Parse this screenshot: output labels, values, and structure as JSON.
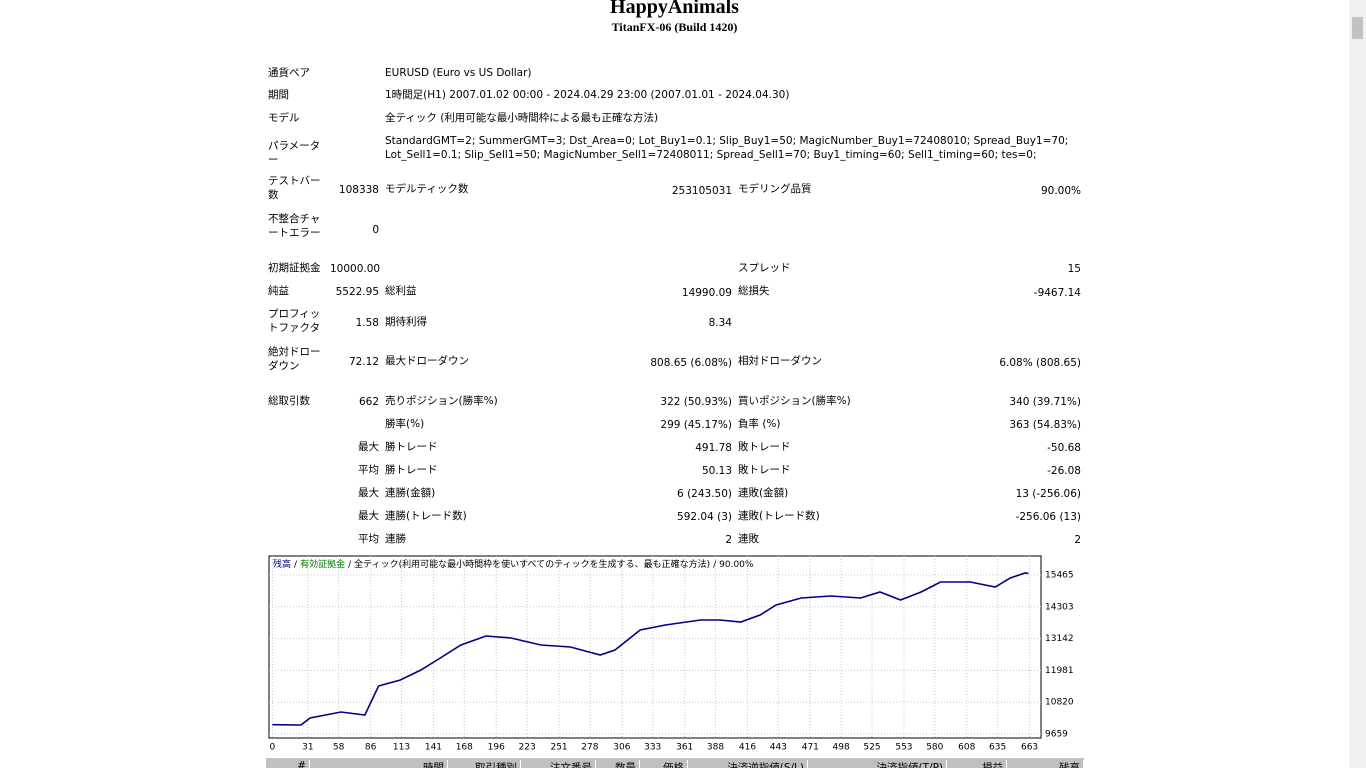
{
  "header": {
    "title": "HappyAnimals",
    "subtitle": "TitanFX-06 (Build 1420)"
  },
  "report": {
    "symbol": {
      "label": "通貨ペア",
      "value": "EURUSD (Euro vs US Dollar)"
    },
    "period": {
      "label": "期間",
      "value": "1時間足(H1) 2007.01.02 00:00 - 2024.04.29 23:00 (2007.01.01 - 2024.04.30)"
    },
    "model": {
      "label": "モデル",
      "value": "全ティック (利用可能な最小時間枠による最も正確な方法)"
    },
    "parameters": {
      "label": "パラメーター",
      "value": "StandardGMT=2; SummerGMT=3; Dst_Area=0; Lot_Buy1=0.1; Slip_Buy1=50; MagicNumber_Buy1=72408010; Spread_Buy1=70; Lot_Sell1=0.1; Slip_Sell1=50; MagicNumber_Sell1=72408011; Spread_Sell1=70; Buy1_timing=60; Sell1_timing=60; tes=0;"
    },
    "bars": {
      "label": "テストバー数",
      "value": "108338"
    },
    "ticks": {
      "label": "モデルティック数",
      "value": "253105031"
    },
    "quality": {
      "label": "モデリング品質",
      "value": "90.00%"
    },
    "mismatch": {
      "label": "不整合チャートエラー",
      "value": "0"
    },
    "deposit": {
      "label": "初期証拠金",
      "value": "10000.00"
    },
    "spread": {
      "label": "スプレッド",
      "value": "15"
    },
    "net_profit": {
      "label": "純益",
      "value": "5522.95"
    },
    "gross_profit": {
      "label": "総利益",
      "value": "14990.09"
    },
    "gross_loss": {
      "label": "総損失",
      "value": "-9467.14"
    },
    "profit_factor": {
      "label": "プロフィットファクタ",
      "value": "1.58"
    },
    "expected_payoff": {
      "label": "期待利得",
      "value": "8.34"
    },
    "abs_dd": {
      "label": "絶対ドローダウン",
      "value": "72.12"
    },
    "max_dd": {
      "label": "最大ドローダウン",
      "value": "808.65 (6.08%)"
    },
    "rel_dd": {
      "label": "相対ドローダウン",
      "value": "6.08% (808.65)"
    },
    "total_trades": {
      "label": "総取引数",
      "value": "662"
    },
    "short": {
      "label": "売りポジション(勝率%)",
      "value": "322 (50.93%)"
    },
    "long": {
      "label": "買いポジション(勝率%)",
      "value": "340 (39.71%)"
    },
    "profit_trades": {
      "label": "勝率(%)",
      "value": "299 (45.17%)"
    },
    "loss_trades": {
      "label": "負率 (%)",
      "value": "363 (54.83%)"
    },
    "largest": {
      "label": "最大",
      "profit_label": "勝トレード",
      "profit": "491.78",
      "loss_label": "敗トレード",
      "loss": "-50.68"
    },
    "average": {
      "label": "平均",
      "profit_label": "勝トレード",
      "profit": "50.13",
      "loss_label": "敗トレード",
      "loss": "-26.08"
    },
    "max_consec_wins": {
      "label": "最大",
      "profit_label": "連勝(金額)",
      "profit": "6 (243.50)",
      "loss_label": "連敗(金額)",
      "loss": "13 (-256.06)"
    },
    "max_consec_profit": {
      "label": "最大",
      "profit_label": "連勝(トレード数)",
      "profit": "592.04 (3)",
      "loss_label": "連敗(トレード数)",
      "loss": "-256.06 (13)"
    },
    "avg_consec": {
      "label": "平均",
      "profit_label": "連勝",
      "profit": "2",
      "loss_label": "連敗",
      "loss": "2"
    }
  },
  "chart_data": {
    "type": "line",
    "legend": {
      "balance": "残高",
      "equity": "有効証拠金",
      "model": "全ティック(利用可能な最小時間枠を使いすべてのティックを生成する、最も正確な方法)",
      "quality": "90.00%",
      "separator": "/",
      "balance_color": "#000080",
      "equity_color": "#008000"
    },
    "x": [
      0,
      25,
      33,
      60,
      81,
      88,
      93,
      112,
      130,
      147,
      165,
      187,
      209,
      235,
      261,
      287,
      300,
      322,
      344,
      375,
      392,
      410,
      427,
      441,
      463,
      489,
      515,
      532,
      550,
      568,
      585,
      611,
      633,
      646,
      659,
      662
    ],
    "values": [
      10000,
      9988,
      10243,
      10462,
      10353,
      10973,
      11411,
      11631,
      11995,
      12434,
      12908,
      13237,
      13164,
      12908,
      12835,
      12543,
      12726,
      13456,
      13639,
      13821,
      13821,
      13748,
      14004,
      14369,
      14625,
      14697,
      14625,
      14843,
      14551,
      14843,
      15208,
      15208,
      15026,
      15355,
      15537,
      15523
    ],
    "color": "#000080",
    "xlim": [
      -3,
      673
    ],
    "ylim": [
      9513,
      16158
    ],
    "xticks": [
      0,
      31,
      58,
      86,
      113,
      141,
      168,
      196,
      223,
      251,
      278,
      306,
      333,
      361,
      388,
      416,
      443,
      471,
      498,
      525,
      553,
      580,
      608,
      635,
      663
    ],
    "yticks": [
      9659,
      10820,
      11981,
      13142,
      14303,
      15465
    ],
    "grid": true
  },
  "trades": {
    "columns": [
      "#",
      "時間",
      "取引種別",
      "注文番号",
      "数量",
      "価格",
      "決済逆指値(S/L)",
      "決済指値(T/P)",
      "損益",
      "残高"
    ]
  }
}
